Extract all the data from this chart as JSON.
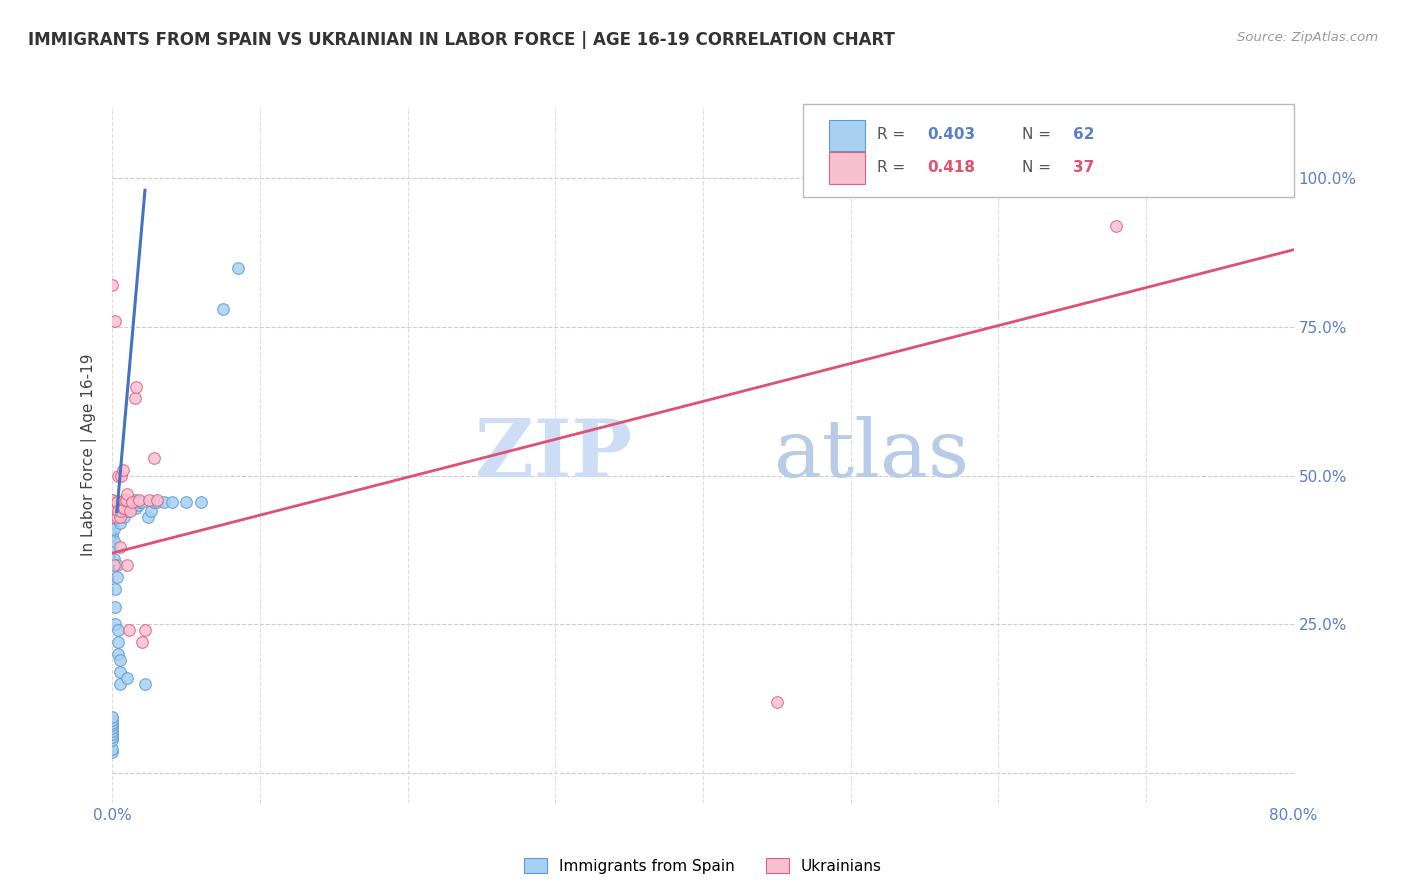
{
  "title": "IMMIGRANTS FROM SPAIN VS UKRAINIAN IN LABOR FORCE | AGE 16-19 CORRELATION CHART",
  "source_text": "Source: ZipAtlas.com",
  "ylabel": "In Labor Force | Age 16-19",
  "legend_label1": "Immigrants from Spain",
  "legend_label2": "Ukrainians",
  "legend_r1": "R = ",
  "legend_r1_val": "0.403",
  "legend_n1": "N = ",
  "legend_n1_val": "62",
  "legend_r2": "R = ",
  "legend_r2_val": "0.418",
  "legend_n2": "N = ",
  "legend_n2_val": "37",
  "watermark_zip": "ZIP",
  "watermark_atlas": "atlas",
  "color_blue_fill": "#a8d0f0",
  "color_blue_edge": "#5b9bd5",
  "color_pink_fill": "#f9c0d0",
  "color_pink_edge": "#e06080",
  "color_line_blue": "#4472c4",
  "color_line_blue_dash": "#8aaee0",
  "color_line_pink": "#e05070",
  "color_axis": "#5b7ec9",
  "color_title": "#333333",
  "xlim": [
    0.0,
    0.8
  ],
  "ylim": [
    -0.05,
    1.12
  ],
  "x_ticks": [
    0.0,
    0.1,
    0.2,
    0.3,
    0.4,
    0.5,
    0.6,
    0.7,
    0.8
  ],
  "x_tick_labels": [
    "0.0%",
    "",
    "",
    "",
    "",
    "",
    "",
    "",
    "80.0%"
  ],
  "y_ticks": [
    0.0,
    0.25,
    0.5,
    0.75,
    1.0
  ],
  "y_tick_labels_right": [
    "",
    "25.0%",
    "50.0%",
    "75.0%",
    "100.0%"
  ],
  "blue_points_x": [
    0.0,
    0.0,
    0.0,
    0.0,
    0.0,
    0.0,
    0.0,
    0.0,
    0.0,
    0.0,
    0.0,
    0.0,
    0.0,
    0.0,
    0.0,
    0.0,
    0.0,
    0.0,
    0.001,
    0.001,
    0.001,
    0.002,
    0.002,
    0.002,
    0.003,
    0.003,
    0.003,
    0.004,
    0.004,
    0.004,
    0.005,
    0.005,
    0.005,
    0.005,
    0.006,
    0.006,
    0.007,
    0.007,
    0.008,
    0.008,
    0.009,
    0.01,
    0.01,
    0.011,
    0.012,
    0.013,
    0.015,
    0.016,
    0.017,
    0.018,
    0.02,
    0.022,
    0.024,
    0.026,
    0.028,
    0.03,
    0.035,
    0.04,
    0.05,
    0.06,
    0.075,
    0.085
  ],
  "blue_points_y": [
    0.035,
    0.04,
    0.055,
    0.06,
    0.065,
    0.07,
    0.075,
    0.08,
    0.085,
    0.09,
    0.095,
    0.38,
    0.4,
    0.42,
    0.43,
    0.445,
    0.455,
    0.46,
    0.36,
    0.39,
    0.41,
    0.25,
    0.28,
    0.31,
    0.33,
    0.35,
    0.43,
    0.2,
    0.22,
    0.24,
    0.15,
    0.17,
    0.19,
    0.42,
    0.435,
    0.455,
    0.44,
    0.455,
    0.43,
    0.45,
    0.46,
    0.16,
    0.44,
    0.455,
    0.445,
    0.455,
    0.46,
    0.445,
    0.45,
    0.455,
    0.455,
    0.15,
    0.43,
    0.44,
    0.455,
    0.455,
    0.455,
    0.455,
    0.455,
    0.455,
    0.78,
    0.85
  ],
  "pink_points_x": [
    0.0,
    0.0,
    0.0,
    0.0,
    0.0,
    0.001,
    0.001,
    0.002,
    0.002,
    0.003,
    0.003,
    0.004,
    0.004,
    0.005,
    0.005,
    0.006,
    0.006,
    0.007,
    0.007,
    0.008,
    0.008,
    0.009,
    0.01,
    0.01,
    0.011,
    0.012,
    0.013,
    0.015,
    0.016,
    0.018,
    0.02,
    0.022,
    0.025,
    0.028,
    0.03,
    0.45,
    0.68
  ],
  "pink_points_y": [
    0.43,
    0.445,
    0.455,
    0.46,
    0.82,
    0.35,
    0.43,
    0.44,
    0.76,
    0.43,
    0.455,
    0.44,
    0.5,
    0.38,
    0.43,
    0.44,
    0.5,
    0.445,
    0.51,
    0.445,
    0.46,
    0.46,
    0.35,
    0.47,
    0.24,
    0.44,
    0.455,
    0.63,
    0.65,
    0.46,
    0.22,
    0.24,
    0.46,
    0.53,
    0.46,
    0.12,
    0.92
  ],
  "blue_solid_line": [
    [
      0.003,
      0.44
    ],
    [
      0.022,
      0.98
    ]
  ],
  "blue_dash_line": [
    [
      0.0,
      0.3
    ],
    [
      0.003,
      0.44
    ]
  ],
  "pink_solid_line": [
    [
      0.0,
      0.37
    ],
    [
      0.8,
      0.88
    ]
  ]
}
